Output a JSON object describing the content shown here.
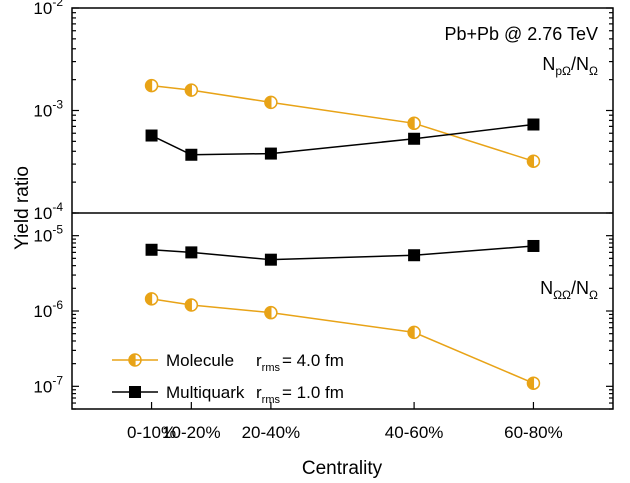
{
  "chart_data": {
    "type": "line",
    "categories": [
      "0-10%",
      "10-20%",
      "20-40%",
      "40-60%",
      "60-80%"
    ],
    "x": [
      0.5,
      1,
      2,
      3.8,
      5.3
    ],
    "xlim": [
      -0.5,
      6.3
    ],
    "xlabel": "Centrality",
    "ylabel": "Yield ratio",
    "yscale": "log",
    "colors": {
      "Molecule": "#e8a317",
      "Multiquark": "#000000"
    },
    "legend": {
      "placement": "lower-left of bottom panel",
      "entries": [
        {
          "name": "Molecule",
          "param_label": "r",
          "param_sub": "rms",
          "param_value": "= 4.0 fm"
        },
        {
          "name": "Multiquark",
          "param_label": "r",
          "param_sub": "rms",
          "param_value": "= 1.0 fm"
        }
      ]
    },
    "panels": [
      {
        "id": "top",
        "annotation": "Pb+Pb @ 2.76 TeV",
        "ratio_label": {
          "n1": "N",
          "s1": "pΩ",
          "n2": "/N",
          "s2": "Ω"
        },
        "ylim": [
          0.0001,
          0.01
        ],
        "yticks": [
          {
            "base": "10",
            "exp": "-2"
          },
          {
            "base": "10",
            "exp": "-3"
          },
          {
            "base": "10",
            "exp": "-4"
          }
        ],
        "series": [
          {
            "name": "Molecule",
            "marker": "half-circle",
            "values": [
              0.00175,
              0.00158,
              0.0012,
              0.00075,
              0.00032
            ]
          },
          {
            "name": "Multiquark",
            "marker": "square",
            "values": [
              0.00057,
              0.00037,
              0.00038,
              0.00053,
              0.00073
            ]
          }
        ]
      },
      {
        "id": "bottom",
        "ratio_label": {
          "n1": "N",
          "s1": "ΩΩ",
          "n2": "/N",
          "s2": "Ω"
        },
        "ylim": [
          5e-08,
          2e-05
        ],
        "yticks": [
          {
            "base": "10",
            "exp": "-5"
          },
          {
            "base": "10",
            "exp": "-6"
          },
          {
            "base": "10",
            "exp": "-7"
          }
        ],
        "series": [
          {
            "name": "Molecule",
            "marker": "half-circle",
            "values": [
              1.45e-06,
              1.2e-06,
              9.5e-07,
              5.2e-07,
              1.1e-07
            ]
          },
          {
            "name": "Multiquark",
            "marker": "square",
            "values": [
              6.5e-06,
              6e-06,
              4.8e-06,
              5.5e-06,
              7.3e-06
            ]
          }
        ]
      }
    ]
  }
}
